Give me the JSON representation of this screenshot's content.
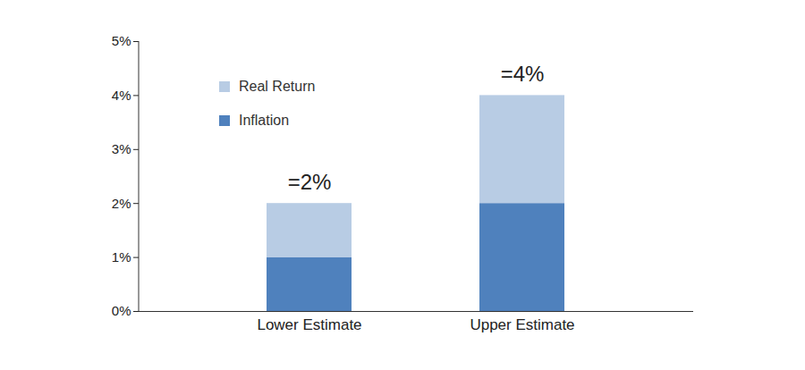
{
  "chart_data": {
    "type": "bar",
    "stacked": true,
    "categories": [
      "Lower Estimate",
      "Upper Estimate"
    ],
    "series": [
      {
        "name": "Inflation",
        "color": "#4f81bd",
        "values": [
          1,
          2
        ]
      },
      {
        "name": "Real Return",
        "color": "#b8cce4",
        "values": [
          1,
          2
        ]
      }
    ],
    "annotations": [
      "=2%",
      "=4%"
    ],
    "ylim": [
      0,
      5
    ],
    "yticks": [
      {
        "value": 0,
        "label": "0%"
      },
      {
        "value": 1,
        "label": "1%"
      },
      {
        "value": 2,
        "label": "2%"
      },
      {
        "value": 3,
        "label": "3%"
      },
      {
        "value": 4,
        "label": "4%"
      },
      {
        "value": 5,
        "label": "5%"
      }
    ],
    "legend": "top-left",
    "grid": false
  }
}
